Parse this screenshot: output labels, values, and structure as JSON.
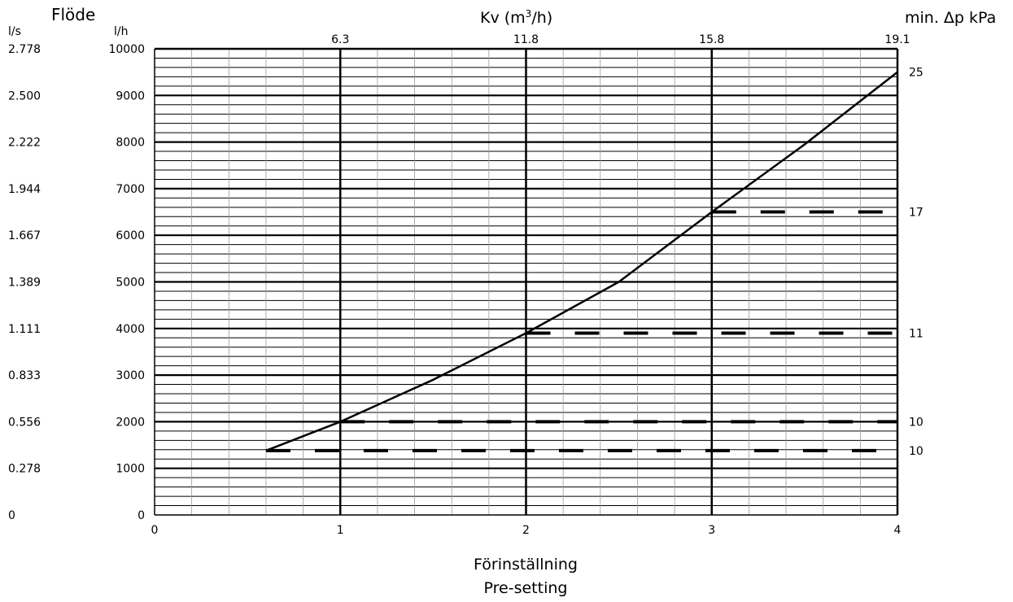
{
  "chart_data": {
    "type": "line",
    "labels": {
      "flow_title": "Flöde",
      "ls_unit": "l/s",
      "lh_unit": "l/h",
      "kv_title_prefix": "Kv (m",
      "kv_title_sup": "3",
      "kv_title_suffix": "/h)",
      "dp_title": "min. Δp kPa",
      "xlabel_line1": "Förinställning",
      "xlabel_line2": "Pre-setting"
    },
    "x_axis": {
      "range": [
        0,
        4
      ],
      "ticks": [
        "0",
        "1",
        "2",
        "3",
        "4"
      ],
      "minor_step": 0.2
    },
    "y_axis": {
      "range": [
        0,
        10000
      ],
      "ticks": [
        "0",
        "1000",
        "2000",
        "3000",
        "4000",
        "5000",
        "6000",
        "7000",
        "8000",
        "9000",
        "10000"
      ],
      "minor_step": 200
    },
    "y_axis_ls": {
      "ticks": [
        "0",
        "0.278",
        "0.556",
        "0.833",
        "1.111",
        "1.389",
        "1.667",
        "1.944",
        "2.222",
        "2.500",
        "2.778"
      ]
    },
    "kv_axis": {
      "ticks": [
        {
          "x": 1,
          "label": "6.3"
        },
        {
          "x": 2,
          "label": "11.8"
        },
        {
          "x": 3,
          "label": "15.8"
        },
        {
          "x": 4,
          "label": "19.1"
        }
      ]
    },
    "grid": true,
    "series": [
      {
        "values": [
          {
            "x": 0.6,
            "y": 1380
          },
          {
            "x": 1.0,
            "y": 2000
          },
          {
            "x": 1.5,
            "y": 2900
          },
          {
            "x": 2.0,
            "y": 3900
          },
          {
            "x": 2.5,
            "y": 5000
          },
          {
            "x": 3.0,
            "y": 6500
          },
          {
            "x": 3.5,
            "y": 7950
          },
          {
            "x": 4.0,
            "y": 9500
          }
        ]
      }
    ],
    "dashed_levels": [
      {
        "x_start": 0.6,
        "y": 1380,
        "dp": "10"
      },
      {
        "x_start": 1.0,
        "y": 2000,
        "dp": "10"
      },
      {
        "x_start": 2.0,
        "y": 3900,
        "dp": "11"
      },
      {
        "x_start": 3.0,
        "y": 6500,
        "dp": "17"
      },
      {
        "x_start": 4.0,
        "y": 9500,
        "dp": "25"
      }
    ]
  }
}
